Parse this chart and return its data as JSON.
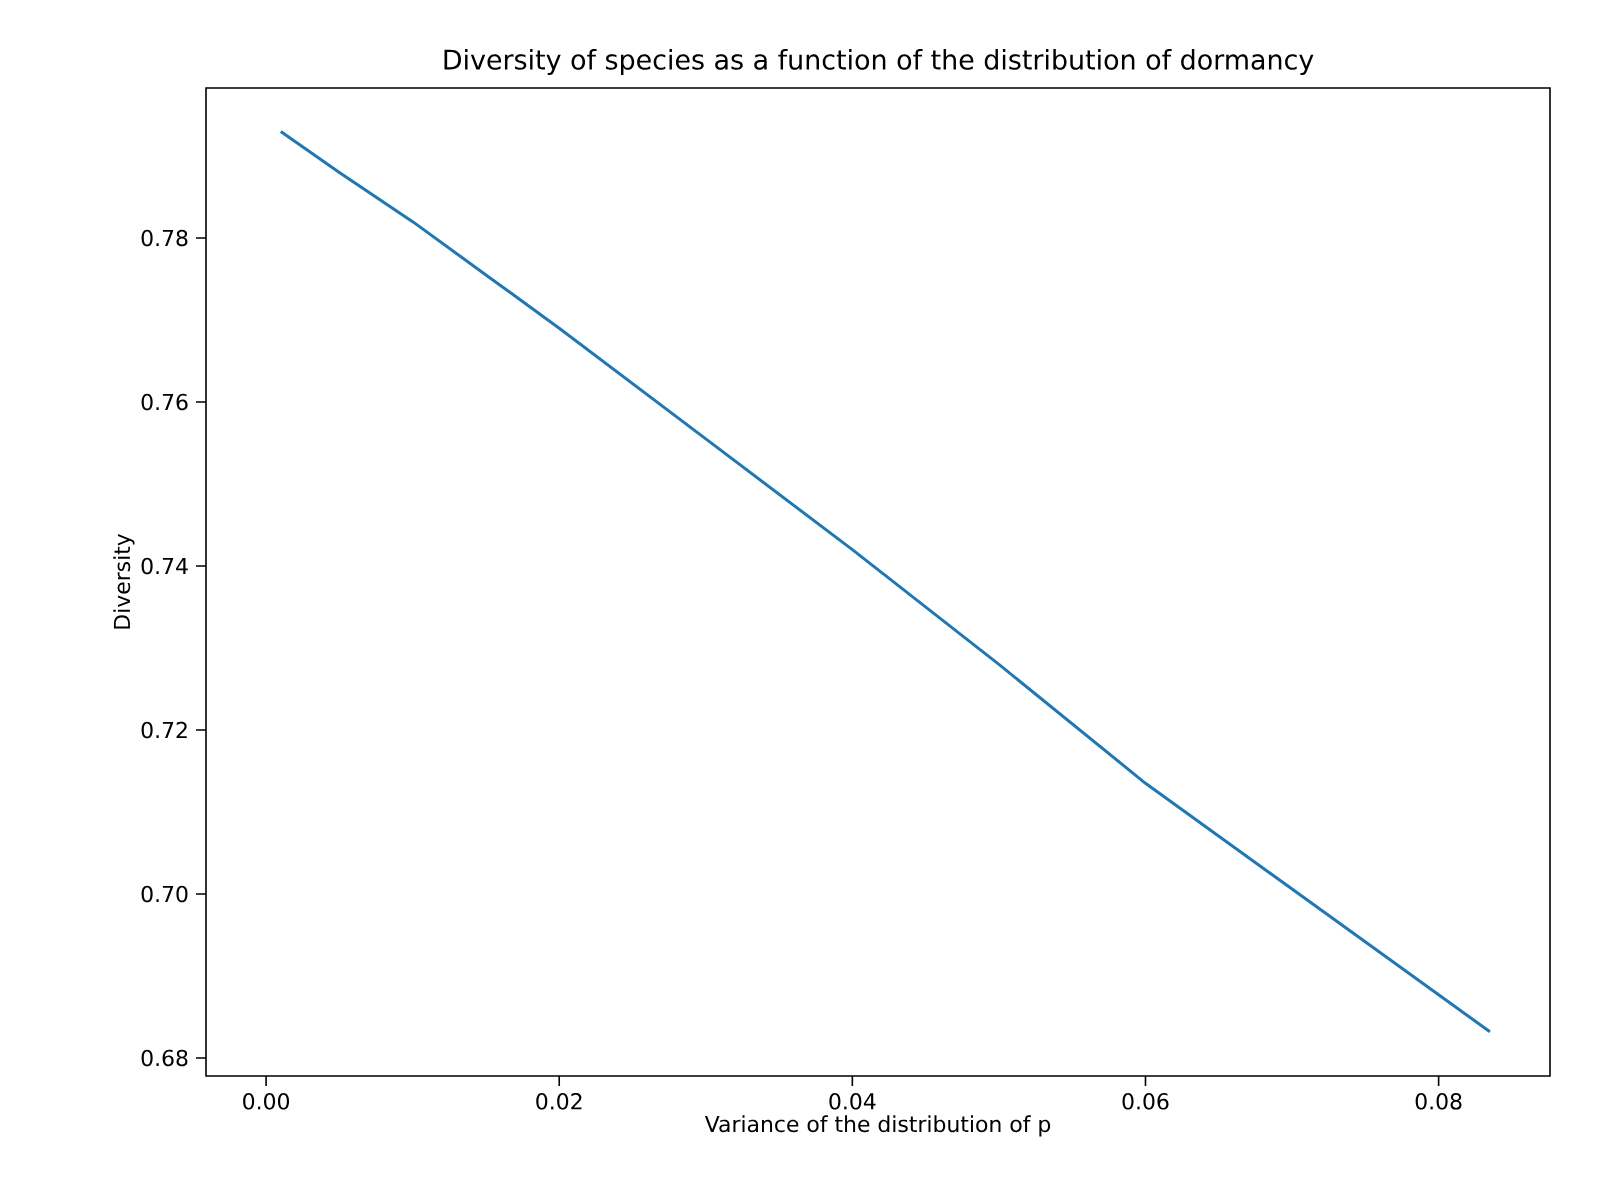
{
  "chart_data": {
    "type": "line",
    "title": "Diversity of species as a function of the distribution of dormancy",
    "xlabel": "Variance of the distribution of p",
    "ylabel": "Diversity",
    "x": [
      0.001,
      0.005,
      0.01,
      0.015,
      0.02,
      0.03,
      0.04,
      0.05,
      0.06,
      0.07,
      0.08,
      0.0835
    ],
    "series": [
      {
        "color": "#1f77b4",
        "values": [
          0.793,
          0.788,
          0.782,
          0.7755,
          0.769,
          0.7555,
          0.742,
          0.728,
          0.7135,
          0.7006,
          0.6877,
          0.6832
        ]
      }
    ],
    "xlim": [
      -0.0041,
      0.0876
    ],
    "ylim": [
      0.6778,
      0.7983
    ],
    "xticks": [
      {
        "value": 0,
        "label": "0.00"
      },
      0.02,
      0.04,
      0.06,
      0.08
    ],
    "yticks": [
      0.68,
      {
        "value": 0.7,
        "label": "0.70"
      },
      0.72,
      0.74,
      0.76,
      0.78
    ],
    "grid": false,
    "marker": "none",
    "line_style": "solid"
  }
}
